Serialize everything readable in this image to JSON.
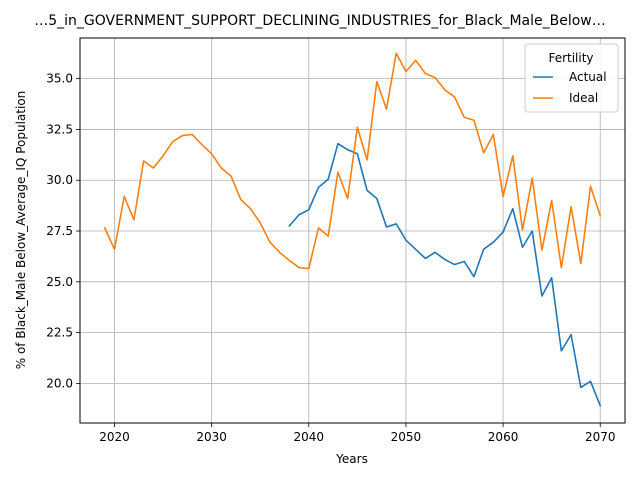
{
  "chart_data": {
    "type": "line",
    "title": "…5_in_GOVERNMENT_SUPPORT_DECLINING_INDUSTRIES_for_Black_Male_Below…",
    "xlabel": "Years",
    "ylabel": "% of Black_Male Below_Average_IQ Population",
    "xlim": [
      2016.45,
      2072.55
    ],
    "ylim": [
      18.05,
      37.0
    ],
    "x_ticks": [
      2020,
      2030,
      2040,
      2050,
      2060,
      2070
    ],
    "x_tick_labels": [
      "2020",
      "2030",
      "2040",
      "2050",
      "2060",
      "2070"
    ],
    "y_ticks": [
      20.0,
      22.5,
      25.0,
      27.5,
      30.0,
      32.5,
      35.0
    ],
    "y_tick_labels": [
      "20.0",
      "22.5",
      "25.0",
      "27.5",
      "30.0",
      "32.5",
      "35.0"
    ],
    "grid": true,
    "legend": {
      "title": "Fertility",
      "placement": "top-right"
    },
    "series": [
      {
        "name": "Actual",
        "color": "#1f77b4",
        "x": [
          2038,
          2039,
          2040,
          2041,
          2042,
          2043,
          2044,
          2045,
          2046,
          2047,
          2048,
          2049,
          2050,
          2051,
          2052,
          2053,
          2054,
          2055,
          2056,
          2057,
          2058,
          2059,
          2060,
          2061,
          2062,
          2063,
          2064,
          2065,
          2066,
          2067,
          2068,
          2069,
          2070
        ],
        "y": [
          27.75,
          28.3,
          28.55,
          29.65,
          30.05,
          31.8,
          31.5,
          31.3,
          29.5,
          29.1,
          27.7,
          27.85,
          27.05,
          26.6,
          26.15,
          26.45,
          26.1,
          25.85,
          26.0,
          25.25,
          26.6,
          26.95,
          27.45,
          28.6,
          26.7,
          27.5,
          24.3,
          25.2,
          21.6,
          22.4,
          19.8,
          20.1,
          18.9
        ]
      },
      {
        "name": "Ideal",
        "color": "#ff7f0e",
        "x": [
          2019,
          2020,
          2021,
          2022,
          2023,
          2024,
          2025,
          2026,
          2027,
          2028,
          2029,
          2030,
          2031,
          2032,
          2033,
          2034,
          2035,
          2036,
          2037,
          2038,
          2039,
          2040,
          2041,
          2042,
          2043,
          2044,
          2045,
          2046,
          2047,
          2048,
          2049,
          2050,
          2051,
          2052,
          2053,
          2054,
          2055,
          2056,
          2057,
          2058,
          2059,
          2060,
          2061,
          2062,
          2063,
          2064,
          2065,
          2066,
          2067,
          2068,
          2069,
          2070
        ],
        "y": [
          27.65,
          26.6,
          29.2,
          28.05,
          30.95,
          30.6,
          31.2,
          31.9,
          32.2,
          32.25,
          31.75,
          31.3,
          30.6,
          30.2,
          29.05,
          28.6,
          27.9,
          26.95,
          26.45,
          26.05,
          25.7,
          25.65,
          27.65,
          27.25,
          30.4,
          29.1,
          32.6,
          31.0,
          34.85,
          33.5,
          36.25,
          35.35,
          35.9,
          35.25,
          35.05,
          34.45,
          34.1,
          33.1,
          32.95,
          31.35,
          32.25,
          29.2,
          31.2,
          27.55,
          30.1,
          26.55,
          29.0,
          25.7,
          28.7,
          25.9,
          29.7,
          28.25
        ]
      }
    ]
  }
}
